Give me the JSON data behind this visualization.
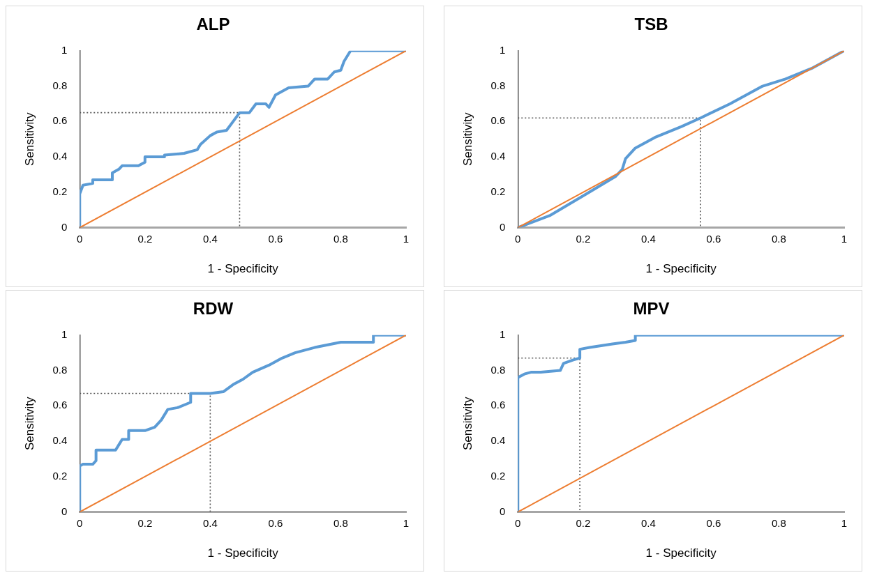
{
  "chart_data": [
    {
      "type": "line",
      "title": "ALP",
      "xlabel": "1 - Specificity",
      "ylabel": "Sensitivity",
      "xlim": [
        0,
        1
      ],
      "ylim": [
        0,
        1
      ],
      "xticks": [
        0,
        0.2,
        0.4,
        0.6,
        0.8,
        1
      ],
      "yticks": [
        0,
        0.2,
        0.4,
        0.6,
        0.8,
        1
      ],
      "grid": false,
      "legend": false,
      "marker": "none",
      "series": [
        {
          "color": "#5b9bd5",
          "x": [
            0,
            0,
            0.01,
            0.04,
            0.04,
            0.1,
            0.1,
            0.12,
            0.13,
            0.18,
            0.2,
            0.2,
            0.26,
            0.26,
            0.32,
            0.36,
            0.37,
            0.4,
            0.42,
            0.45,
            0.47,
            0.49,
            0.52,
            0.54,
            0.57,
            0.58,
            0.6,
            0.64,
            0.7,
            0.72,
            0.76,
            0.78,
            0.8,
            0.81,
            0.83,
            1
          ],
          "values": [
            0,
            0.19,
            0.24,
            0.25,
            0.27,
            0.27,
            0.31,
            0.33,
            0.35,
            0.35,
            0.37,
            0.4,
            0.4,
            0.41,
            0.42,
            0.44,
            0.47,
            0.52,
            0.54,
            0.55,
            0.6,
            0.65,
            0.65,
            0.7,
            0.7,
            0.68,
            0.75,
            0.79,
            0.8,
            0.84,
            0.84,
            0.88,
            0.89,
            0.94,
            1,
            1
          ]
        },
        {
          "color": "#ed7d31",
          "x": [
            0,
            1
          ],
          "values": [
            0,
            1
          ]
        },
        {
          "color": "#595959",
          "line_style": "dotted",
          "x": [
            0,
            0.49,
            0.49
          ],
          "values": [
            0.65,
            0.65,
            0
          ]
        }
      ]
    },
    {
      "type": "line",
      "title": "TSB",
      "xlabel": "1 - Specificity",
      "ylabel": "Sensitivity",
      "xlim": [
        0,
        1
      ],
      "ylim": [
        0,
        1
      ],
      "xticks": [
        0,
        0.2,
        0.4,
        0.6,
        0.8,
        1
      ],
      "yticks": [
        0,
        0.2,
        0.4,
        0.6,
        0.8,
        1
      ],
      "grid": false,
      "legend": false,
      "marker": "none",
      "series": [
        {
          "color": "#5b9bd5",
          "x": [
            0,
            0.1,
            0.2,
            0.3,
            0.32,
            0.33,
            0.36,
            0.42,
            0.5,
            0.56,
            0.65,
            0.75,
            0.82,
            0.9,
            1
          ],
          "values": [
            0,
            0.07,
            0.18,
            0.29,
            0.33,
            0.39,
            0.45,
            0.51,
            0.57,
            0.62,
            0.7,
            0.8,
            0.84,
            0.9,
            1
          ]
        },
        {
          "color": "#ed7d31",
          "x": [
            0,
            1
          ],
          "values": [
            0,
            1
          ]
        },
        {
          "color": "#595959",
          "line_style": "dotted",
          "x": [
            0,
            0.56,
            0.56
          ],
          "values": [
            0.62,
            0.62,
            0
          ]
        }
      ]
    },
    {
      "type": "line",
      "title": "RDW",
      "xlabel": "1 - Specificity",
      "ylabel": "Sensitivity",
      "xlim": [
        0,
        1
      ],
      "ylim": [
        0,
        1
      ],
      "xticks": [
        0,
        0.2,
        0.4,
        0.6,
        0.8,
        1
      ],
      "yticks": [
        0,
        0.2,
        0.4,
        0.6,
        0.8,
        1
      ],
      "grid": false,
      "legend": false,
      "marker": "none",
      "series": [
        {
          "color": "#5b9bd5",
          "x": [
            0,
            0,
            0.01,
            0.04,
            0.05,
            0.05,
            0.11,
            0.12,
            0.13,
            0.15,
            0.15,
            0.2,
            0.23,
            0.25,
            0.27,
            0.3,
            0.34,
            0.34,
            0.4,
            0.44,
            0.47,
            0.5,
            0.53,
            0.58,
            0.62,
            0.66,
            0.72,
            0.8,
            0.9,
            0.9,
            1
          ],
          "values": [
            0,
            0.26,
            0.27,
            0.27,
            0.29,
            0.35,
            0.35,
            0.38,
            0.41,
            0.41,
            0.46,
            0.46,
            0.48,
            0.52,
            0.58,
            0.59,
            0.62,
            0.67,
            0.67,
            0.68,
            0.72,
            0.75,
            0.79,
            0.83,
            0.87,
            0.9,
            0.93,
            0.96,
            0.96,
            1,
            1
          ]
        },
        {
          "color": "#ed7d31",
          "x": [
            0,
            1
          ],
          "values": [
            0,
            1
          ]
        },
        {
          "color": "#595959",
          "line_style": "dotted",
          "x": [
            0,
            0.4,
            0.4
          ],
          "values": [
            0.67,
            0.67,
            0
          ]
        }
      ]
    },
    {
      "type": "line",
      "title": "MPV",
      "xlabel": "1 - Specificity",
      "ylabel": "Sensitivity",
      "xlim": [
        0,
        1
      ],
      "ylim": [
        0,
        1
      ],
      "xticks": [
        0,
        0.2,
        0.4,
        0.6,
        0.8,
        1
      ],
      "yticks": [
        0,
        0.2,
        0.4,
        0.6,
        0.8,
        1
      ],
      "grid": false,
      "legend": false,
      "marker": "none",
      "series": [
        {
          "color": "#5b9bd5",
          "x": [
            0,
            0,
            0.02,
            0.04,
            0.07,
            0.13,
            0.14,
            0.17,
            0.19,
            0.19,
            0.22,
            0.29,
            0.33,
            0.36,
            0.36,
            1
          ],
          "values": [
            0,
            0.76,
            0.78,
            0.79,
            0.79,
            0.8,
            0.84,
            0.86,
            0.87,
            0.92,
            0.93,
            0.95,
            0.96,
            0.97,
            1,
            1
          ]
        },
        {
          "color": "#ed7d31",
          "x": [
            0,
            1
          ],
          "values": [
            0,
            1
          ]
        },
        {
          "color": "#595959",
          "line_style": "dotted",
          "x": [
            0,
            0.19,
            0.19
          ],
          "values": [
            0.87,
            0.87,
            0
          ]
        }
      ]
    }
  ]
}
